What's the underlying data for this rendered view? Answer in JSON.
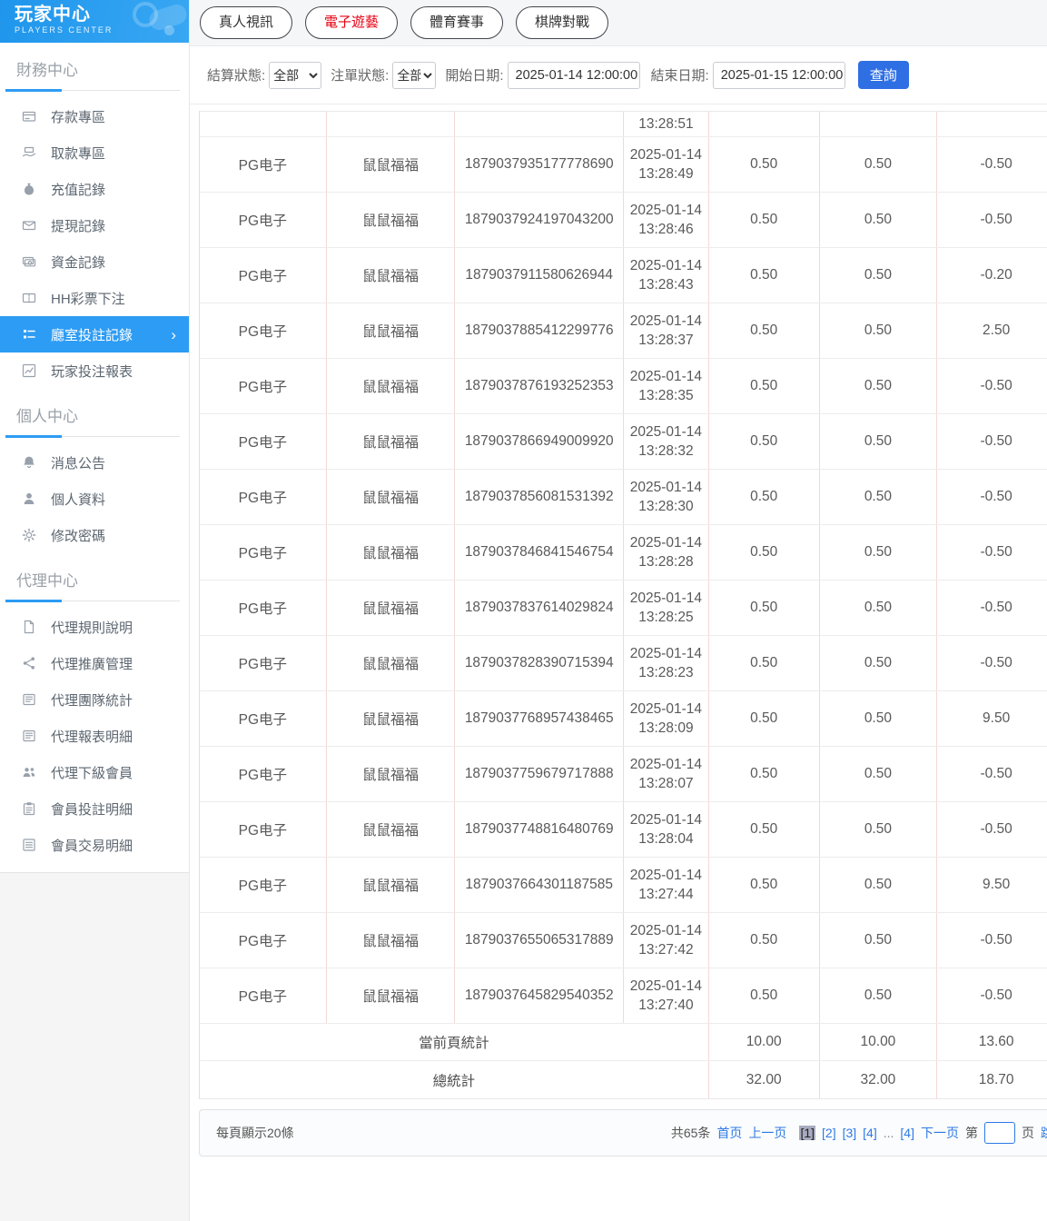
{
  "colors": {
    "accent_blue": "#2d9cf4",
    "button_blue": "#2f6fe4",
    "link_blue": "#2d7ae5",
    "active_tab_red": "#e60012",
    "table_divider_pink": "#f3d8d8",
    "current_page_bg": "#a8abbe"
  },
  "sidebar": {
    "logo": {
      "title": "玩家中心",
      "subtitle": "PLAYERS CENTER"
    },
    "sections": [
      {
        "title": "財務中心",
        "items": [
          {
            "name": "deposit-area",
            "label": "存款專區",
            "icon": "bank-card-icon"
          },
          {
            "name": "withdraw-area",
            "label": "取款專區",
            "icon": "withdraw-hand-icon"
          },
          {
            "name": "recharge-records",
            "label": "充值記錄",
            "icon": "money-bag-icon"
          },
          {
            "name": "withdrawal-records",
            "label": "提現記錄",
            "icon": "envelope-icon"
          },
          {
            "name": "funds-records",
            "label": "資金記錄",
            "icon": "banknotes-icon"
          },
          {
            "name": "hh-lottery-bets",
            "label": "HH彩票下注",
            "icon": "ticket-icon"
          },
          {
            "name": "room-bet-records",
            "label": "廳室投註記錄",
            "icon": "list-menu-icon",
            "active": true,
            "arrow": "›"
          },
          {
            "name": "player-bet-report",
            "label": "玩家投注報表",
            "icon": "chart-report-icon"
          }
        ]
      },
      {
        "title": "個人中心",
        "items": [
          {
            "name": "notices",
            "label": "消息公告",
            "icon": "bell-icon"
          },
          {
            "name": "profile",
            "label": "個人資料",
            "icon": "person-icon"
          },
          {
            "name": "change-password",
            "label": "修改密碼",
            "icon": "gear-icon"
          }
        ]
      },
      {
        "title": "代理中心",
        "items": [
          {
            "name": "agent-rules",
            "label": "代理規則說明",
            "icon": "document-icon"
          },
          {
            "name": "agent-promotion",
            "label": "代理推廣管理",
            "icon": "share-icon"
          },
          {
            "name": "agent-team-stats",
            "label": "代理團隊統計",
            "icon": "newspaper-icon"
          },
          {
            "name": "agent-report-details",
            "label": "代理報表明細",
            "icon": "newspaper-icon"
          },
          {
            "name": "agent-sub-members",
            "label": "代理下級會員",
            "icon": "users-icon"
          },
          {
            "name": "member-bet-details",
            "label": "會員投註明細",
            "icon": "clipboard-icon"
          },
          {
            "name": "member-transaction-details",
            "label": "會員交易明細",
            "icon": "list-doc-icon"
          }
        ]
      }
    ]
  },
  "tabs": [
    {
      "name": "live-video",
      "label": "真人視訊",
      "active": false
    },
    {
      "name": "electronic-games",
      "label": "電子遊藝",
      "active": true
    },
    {
      "name": "sports-events",
      "label": "體育賽事",
      "active": false
    },
    {
      "name": "board-card-battle",
      "label": "棋牌對戰",
      "active": false
    }
  ],
  "filters": {
    "settle_status_label": "結算狀態:",
    "settle_status_value": "全部",
    "order_status_label": "注單狀態:",
    "order_status_value": "全部",
    "start_date_label": "開始日期:",
    "start_date_value": "2025-01-14 12:00:00",
    "end_date_label": "結束日期:",
    "end_date_value": "2025-01-15 12:00:00",
    "query_button": "查詢"
  },
  "table": {
    "partial_row": {
      "time": "13:28:51"
    },
    "rows": [
      {
        "platform": "PG电子",
        "game": "鼠鼠福福",
        "order_no": "1879037935177778690",
        "date": "2025-01-14",
        "time": "13:28:49",
        "bet": "0.50",
        "valid_bet": "0.50",
        "win_loss": "-0.50"
      },
      {
        "platform": "PG电子",
        "game": "鼠鼠福福",
        "order_no": "1879037924197043200",
        "date": "2025-01-14",
        "time": "13:28:46",
        "bet": "0.50",
        "valid_bet": "0.50",
        "win_loss": "-0.50"
      },
      {
        "platform": "PG电子",
        "game": "鼠鼠福福",
        "order_no": "1879037911580626944",
        "date": "2025-01-14",
        "time": "13:28:43",
        "bet": "0.50",
        "valid_bet": "0.50",
        "win_loss": "-0.20"
      },
      {
        "platform": "PG电子",
        "game": "鼠鼠福福",
        "order_no": "1879037885412299776",
        "date": "2025-01-14",
        "time": "13:28:37",
        "bet": "0.50",
        "valid_bet": "0.50",
        "win_loss": "2.50"
      },
      {
        "platform": "PG电子",
        "game": "鼠鼠福福",
        "order_no": "1879037876193252353",
        "date": "2025-01-14",
        "time": "13:28:35",
        "bet": "0.50",
        "valid_bet": "0.50",
        "win_loss": "-0.50"
      },
      {
        "platform": "PG电子",
        "game": "鼠鼠福福",
        "order_no": "1879037866949009920",
        "date": "2025-01-14",
        "time": "13:28:32",
        "bet": "0.50",
        "valid_bet": "0.50",
        "win_loss": "-0.50"
      },
      {
        "platform": "PG电子",
        "game": "鼠鼠福福",
        "order_no": "1879037856081531392",
        "date": "2025-01-14",
        "time": "13:28:30",
        "bet": "0.50",
        "valid_bet": "0.50",
        "win_loss": "-0.50"
      },
      {
        "platform": "PG电子",
        "game": "鼠鼠福福",
        "order_no": "1879037846841546754",
        "date": "2025-01-14",
        "time": "13:28:28",
        "bet": "0.50",
        "valid_bet": "0.50",
        "win_loss": "-0.50"
      },
      {
        "platform": "PG电子",
        "game": "鼠鼠福福",
        "order_no": "1879037837614029824",
        "date": "2025-01-14",
        "time": "13:28:25",
        "bet": "0.50",
        "valid_bet": "0.50",
        "win_loss": "-0.50"
      },
      {
        "platform": "PG电子",
        "game": "鼠鼠福福",
        "order_no": "1879037828390715394",
        "date": "2025-01-14",
        "time": "13:28:23",
        "bet": "0.50",
        "valid_bet": "0.50",
        "win_loss": "-0.50"
      },
      {
        "platform": "PG电子",
        "game": "鼠鼠福福",
        "order_no": "1879037768957438465",
        "date": "2025-01-14",
        "time": "13:28:09",
        "bet": "0.50",
        "valid_bet": "0.50",
        "win_loss": "9.50"
      },
      {
        "platform": "PG电子",
        "game": "鼠鼠福福",
        "order_no": "1879037759679717888",
        "date": "2025-01-14",
        "time": "13:28:07",
        "bet": "0.50",
        "valid_bet": "0.50",
        "win_loss": "-0.50"
      },
      {
        "platform": "PG电子",
        "game": "鼠鼠福福",
        "order_no": "1879037748816480769",
        "date": "2025-01-14",
        "time": "13:28:04",
        "bet": "0.50",
        "valid_bet": "0.50",
        "win_loss": "-0.50"
      },
      {
        "platform": "PG电子",
        "game": "鼠鼠福福",
        "order_no": "1879037664301187585",
        "date": "2025-01-14",
        "time": "13:27:44",
        "bet": "0.50",
        "valid_bet": "0.50",
        "win_loss": "9.50"
      },
      {
        "platform": "PG电子",
        "game": "鼠鼠福福",
        "order_no": "1879037655065317889",
        "date": "2025-01-14",
        "time": "13:27:42",
        "bet": "0.50",
        "valid_bet": "0.50",
        "win_loss": "-0.50"
      },
      {
        "platform": "PG电子",
        "game": "鼠鼠福福",
        "order_no": "1879037645829540352",
        "date": "2025-01-14",
        "time": "13:27:40",
        "bet": "0.50",
        "valid_bet": "0.50",
        "win_loss": "-0.50"
      }
    ],
    "summary_rows": [
      {
        "label": "當前頁統計",
        "bet": "10.00",
        "valid_bet": "10.00",
        "win_loss": "13.60"
      },
      {
        "label": "總統計",
        "bet": "32.00",
        "valid_bet": "32.00",
        "win_loss": "18.70"
      }
    ]
  },
  "footer": {
    "page_size_text": "每頁顯示20條",
    "total_text": "共65条",
    "first_label": "首页",
    "prev_label": "上一页",
    "pages": [
      {
        "label": "[1]",
        "type": "current"
      },
      {
        "label": "[2]",
        "type": "link"
      },
      {
        "label": "[3]",
        "type": "link"
      },
      {
        "label": "[4]",
        "type": "link"
      },
      {
        "label": "...",
        "type": "ellipsis"
      },
      {
        "label": "[4]",
        "type": "link"
      }
    ],
    "next_label": "下一页",
    "jump_prefix": "第",
    "jump_suffix": "页",
    "jump_action": "跳转"
  }
}
